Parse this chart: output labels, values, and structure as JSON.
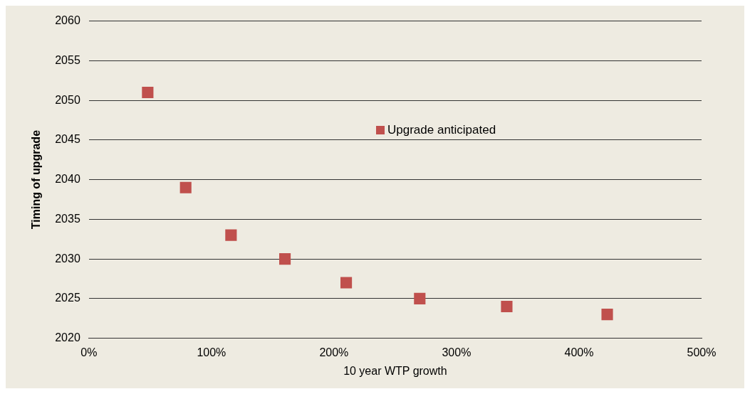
{
  "chart_data": {
    "type": "scatter",
    "xlabel": "10 year WTP growth",
    "ylabel": "Timing of upgrade",
    "x": [
      48,
      79,
      116,
      160,
      210,
      270,
      341,
      423
    ],
    "series": [
      {
        "name": "Upgrade anticipated",
        "color": "#c0504d",
        "values": [
          2051,
          2039,
          2033,
          2030,
          2027,
          2025,
          2024,
          2023
        ]
      }
    ],
    "xlim": [
      0,
      500
    ],
    "xticks": [
      {
        "value": 0,
        "label": "0%"
      },
      {
        "value": 100,
        "label": "100%"
      },
      {
        "value": 200,
        "label": "200%"
      },
      {
        "value": 300,
        "label": "300%"
      },
      {
        "value": 400,
        "label": "400%"
      },
      {
        "value": 500,
        "label": "500%"
      }
    ],
    "ylim": [
      2020,
      2060
    ],
    "yticks": [
      2020,
      2025,
      2030,
      2035,
      2040,
      2045,
      2050,
      2055,
      2060
    ],
    "grid": "y",
    "legend": "top",
    "marker": "square"
  }
}
